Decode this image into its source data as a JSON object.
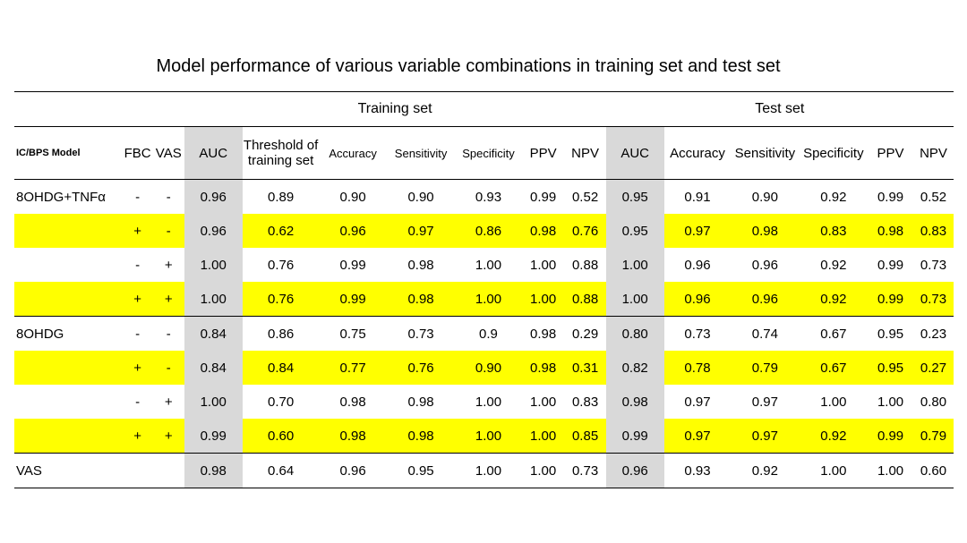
{
  "title": "Model performance of various variable combinations in training set and test set",
  "groups": {
    "training": "Training  set",
    "test": "Test set"
  },
  "headers": {
    "model": "IC/BPS Model",
    "fbc": "FBC",
    "vas": "VAS",
    "train": [
      "AUC",
      "Threshold of training set",
      "Accuracy",
      "Sensitivity",
      "Specificity",
      "PPV",
      "NPV"
    ],
    "test": [
      "AUC",
      "Accuracy",
      "Sensitivity",
      "Specificity",
      "PPV",
      "NPV"
    ]
  },
  "highlight_color": "#ffff00",
  "auc_column_color": "#d9d9d9",
  "rows": [
    {
      "model": "8OHDG+TNFα",
      "fbc": "-",
      "vas": "-",
      "highlight": false,
      "train": [
        "0.96",
        "0.89",
        "0.90",
        "0.90",
        "0.93",
        "0.99",
        "0.52"
      ],
      "test": [
        "0.95",
        "0.91",
        "0.90",
        "0.92",
        "0.99",
        "0.52"
      ]
    },
    {
      "model": "",
      "fbc": "+",
      "vas": "-",
      "highlight": true,
      "train": [
        "0.96",
        "0.62",
        "0.96",
        "0.97",
        "0.86",
        "0.98",
        "0.76"
      ],
      "test": [
        "0.95",
        "0.97",
        "0.98",
        "0.83",
        "0.98",
        "0.83"
      ]
    },
    {
      "model": "",
      "fbc": "-",
      "vas": "+",
      "highlight": false,
      "train": [
        "1.00",
        "0.76",
        "0.99",
        "0.98",
        "1.00",
        "1.00",
        "0.88"
      ],
      "test": [
        "1.00",
        "0.96",
        "0.96",
        "0.92",
        "0.99",
        "0.73"
      ]
    },
    {
      "model": "",
      "fbc": "+",
      "vas": "+",
      "highlight": true,
      "train": [
        "1.00",
        "0.76",
        "0.99",
        "0.98",
        "1.00",
        "1.00",
        "0.88"
      ],
      "test": [
        "1.00",
        "0.96",
        "0.96",
        "0.92",
        "0.99",
        "0.73"
      ]
    },
    {
      "model": "8OHDG",
      "fbc": "-",
      "vas": "-",
      "highlight": false,
      "train": [
        "0.84",
        "0.86",
        "0.75",
        "0.73",
        "0.9",
        "0.98",
        "0.29"
      ],
      "test": [
        "0.80",
        "0.73",
        "0.74",
        "0.67",
        "0.95",
        "0.23"
      ]
    },
    {
      "model": "",
      "fbc": "+",
      "vas": "-",
      "highlight": true,
      "train": [
        "0.84",
        "0.84",
        "0.77",
        "0.76",
        "0.90",
        "0.98",
        "0.31"
      ],
      "test": [
        "0.82",
        "0.78",
        "0.79",
        "0.67",
        "0.95",
        "0.27"
      ]
    },
    {
      "model": "",
      "fbc": "-",
      "vas": "+",
      "highlight": false,
      "train": [
        "1.00",
        "0.70",
        "0.98",
        "0.98",
        "1.00",
        "1.00",
        "0.83"
      ],
      "test": [
        "0.98",
        "0.97",
        "0.97",
        "1.00",
        "1.00",
        "0.80"
      ]
    },
    {
      "model": "",
      "fbc": "+",
      "vas": "+",
      "highlight": true,
      "train": [
        "0.99",
        "0.60",
        "0.98",
        "0.98",
        "1.00",
        "1.00",
        "0.85"
      ],
      "test": [
        "0.99",
        "0.97",
        "0.97",
        "0.92",
        "0.99",
        "0.79"
      ]
    },
    {
      "model": "VAS",
      "fbc": "",
      "vas": "",
      "highlight": false,
      "train": [
        "0.98",
        "0.64",
        "0.96",
        "0.95",
        "1.00",
        "1.00",
        "0.73"
      ],
      "test": [
        "0.96",
        "0.93",
        "0.92",
        "1.00",
        "1.00",
        "0.60"
      ]
    }
  ]
}
